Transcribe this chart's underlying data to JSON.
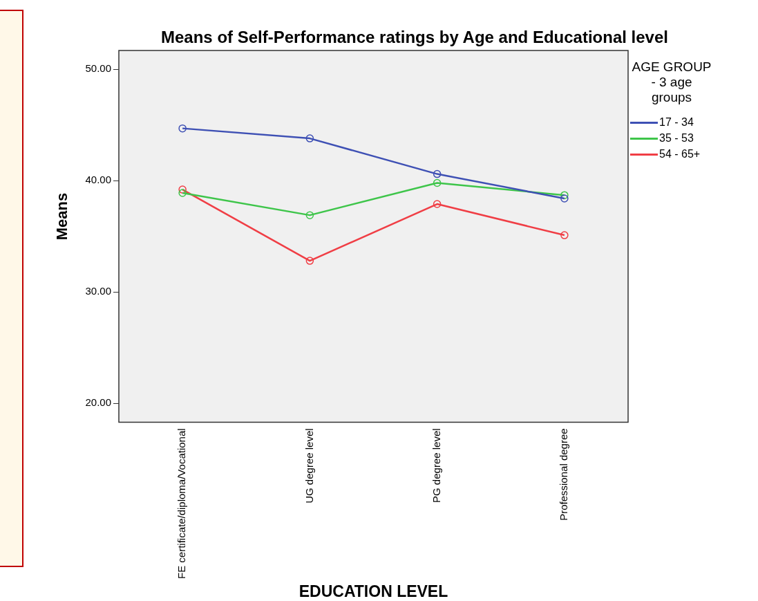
{
  "chart_data": {
    "type": "line",
    "title": "Means of Self-Performance ratings by Age and Educational level",
    "xlabel": "EDUCATION LEVEL",
    "ylabel": "Means",
    "legend_title": "AGE GROUP - 3 age groups",
    "legend": "right",
    "marker": "circle",
    "grid": false,
    "categories": [
      "FE certificate/diploma/Vocational",
      "UG degree level",
      "PG degree level",
      "Professional degree"
    ],
    "ylim": [
      18.3,
      51.7
    ],
    "yticks": [
      {
        "value": 20,
        "label": "20.00"
      },
      {
        "value": 30,
        "label": "30.00"
      },
      {
        "value": 40,
        "label": "40.00"
      },
      {
        "value": 50,
        "label": "50.00"
      }
    ],
    "series": [
      {
        "name": "17 - 34",
        "color": "#3e50b4",
        "values": [
          44.7,
          43.8,
          40.6,
          38.4
        ]
      },
      {
        "name": "35 - 53",
        "color": "#3ec54a",
        "values": [
          38.9,
          36.9,
          39.8,
          38.7
        ]
      },
      {
        "name": "54 - 65+",
        "color": "#f03e45",
        "values": [
          39.2,
          32.8,
          37.9,
          35.1
        ]
      }
    ]
  }
}
